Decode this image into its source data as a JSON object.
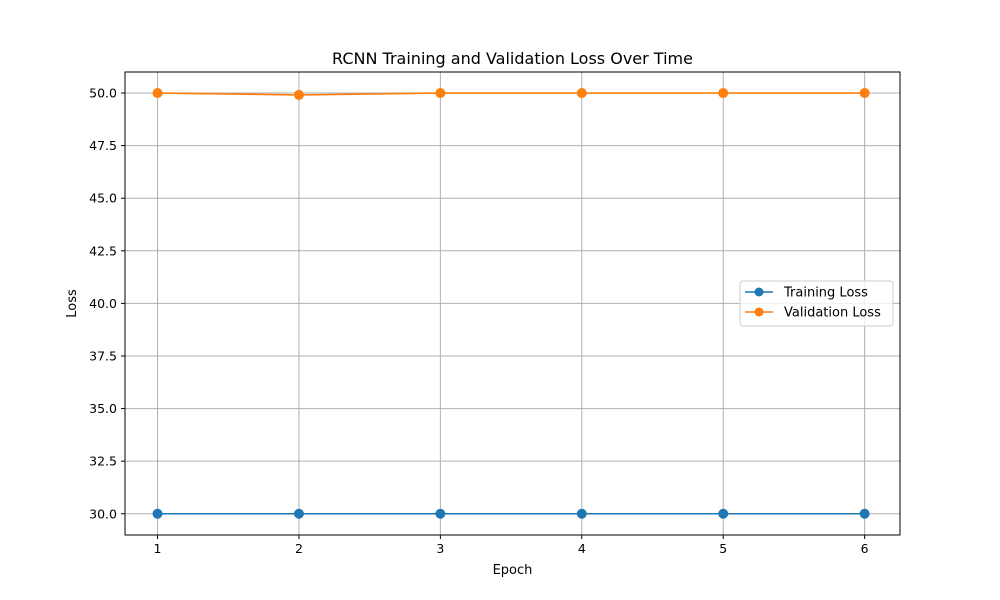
{
  "chart_data": {
    "type": "line",
    "title": "RCNN Training and Validation Loss Over Time",
    "xlabel": "Epoch",
    "ylabel": "Loss",
    "x": [
      1,
      2,
      3,
      4,
      5,
      6
    ],
    "x_ticks": [
      "1",
      "2",
      "3",
      "4",
      "5",
      "6"
    ],
    "xlim": [
      0.77,
      6.25
    ],
    "y_ticks": [
      "30.0",
      "32.5",
      "35.0",
      "37.5",
      "40.0",
      "42.5",
      "45.0",
      "47.5",
      "50.0"
    ],
    "y_tick_values": [
      30.0,
      32.5,
      35.0,
      37.5,
      40.0,
      42.5,
      45.0,
      47.5,
      50.0
    ],
    "ylim": [
      28.99,
      51.0
    ],
    "grid": true,
    "legend_position": "center-right",
    "series": [
      {
        "name": "Training Loss",
        "color": "#1f77b4",
        "marker": "circle",
        "values": [
          30.0,
          30.0,
          30.0,
          30.0,
          30.0,
          30.0
        ]
      },
      {
        "name": "Validation Loss",
        "color": "#ff7f0e",
        "marker": "circle",
        "values": [
          50.0,
          49.91,
          50.0,
          50.0,
          50.0,
          50.0
        ]
      }
    ]
  }
}
